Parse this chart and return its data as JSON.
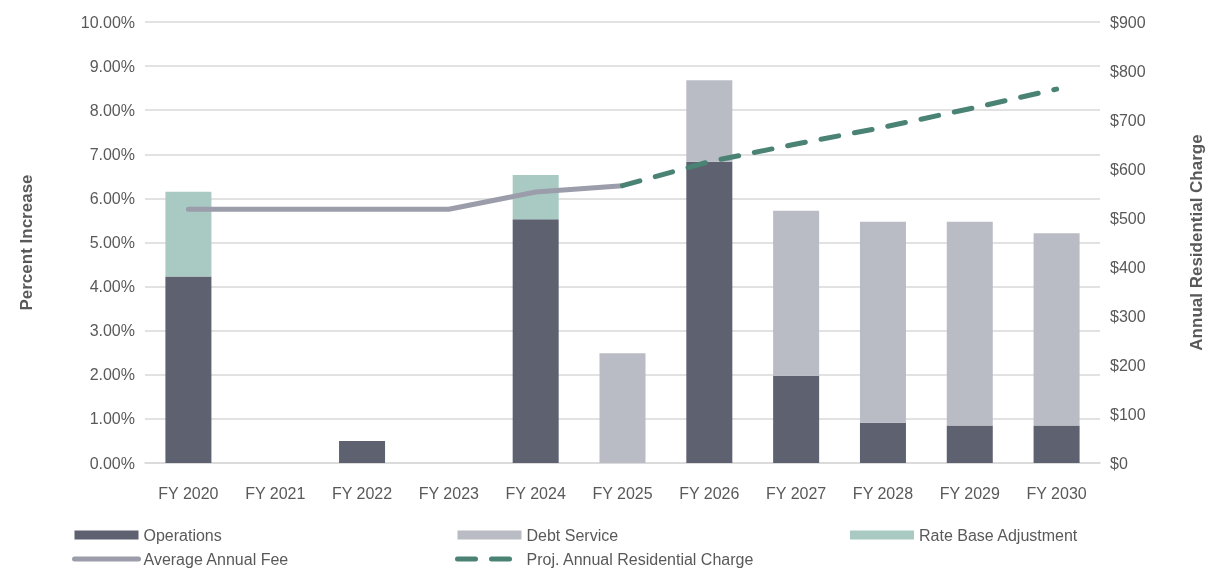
{
  "chart_data": {
    "type": "bar",
    "categories": [
      "FY 2020",
      "FY 2021",
      "FY 2022",
      "FY 2023",
      "FY 2024",
      "FY 2025",
      "FY 2026",
      "FY 2027",
      "FY 2028",
      "FY 2029",
      "FY 2030"
    ],
    "series": [
      {
        "name": "Operations",
        "color": "#5e6170",
        "values": [
          4.23,
          null,
          0.5,
          null,
          5.53,
          null,
          6.83,
          1.98,
          0.91,
          0.85,
          0.85
        ]
      },
      {
        "name": "Debt Service",
        "color": "#b9bcc4",
        "values": [
          null,
          null,
          null,
          null,
          null,
          2.49,
          1.85,
          3.74,
          4.56,
          4.62,
          4.36
        ]
      },
      {
        "name": "Rate Base Adjustment",
        "color": "#a9cac3",
        "values": [
          1.92,
          null,
          null,
          null,
          1.0,
          null,
          null,
          null,
          null,
          null,
          null
        ]
      },
      {
        "name": "Average Annual Fee",
        "type": "line",
        "axis": "y2",
        "line_style": "solid",
        "color": "#9b9dab",
        "values": [
          518,
          518,
          518,
          518,
          553,
          566,
          null,
          null,
          null,
          null,
          null
        ]
      },
      {
        "name": "Proj. Annual Residential Charge",
        "type": "line",
        "axis": "y2",
        "line_style": "dashed",
        "color": "#4a8274",
        "values": [
          null,
          null,
          null,
          null,
          null,
          566,
          615,
          651,
          685,
          723,
          763
        ]
      }
    ],
    "stacked": true,
    "ylabel": "Percent Increase",
    "y2label": "Annual Residential Charge",
    "ylim": [
      0,
      10
    ],
    "yticks": [
      {
        "value": 0,
        "label": "0.00%"
      },
      {
        "value": 1,
        "label": "1.00%"
      },
      {
        "value": 2,
        "label": "2.00%"
      },
      {
        "value": 3,
        "label": "3.00%"
      },
      {
        "value": 4,
        "label": "4.00%"
      },
      {
        "value": 5,
        "label": "5.00%"
      },
      {
        "value": 6,
        "label": "6.00%"
      },
      {
        "value": 7,
        "label": "7.00%"
      },
      {
        "value": 8,
        "label": "8.00%"
      },
      {
        "value": 9,
        "label": "9.00%"
      },
      {
        "value": 10,
        "label": "10.00%"
      }
    ],
    "y2lim": [
      0,
      900
    ],
    "y2ticks": [
      {
        "value": 0,
        "label": "$0"
      },
      {
        "value": 100,
        "label": "$100"
      },
      {
        "value": 200,
        "label": "$200"
      },
      {
        "value": 300,
        "label": "$300"
      },
      {
        "value": 400,
        "label": "$400"
      },
      {
        "value": 500,
        "label": "$500"
      },
      {
        "value": 600,
        "label": "$600"
      },
      {
        "value": 700,
        "label": "$700"
      },
      {
        "value": 800,
        "label": "$800"
      },
      {
        "value": 900,
        "label": "$900"
      }
    ],
    "grid": "y",
    "legend": "bottom"
  }
}
